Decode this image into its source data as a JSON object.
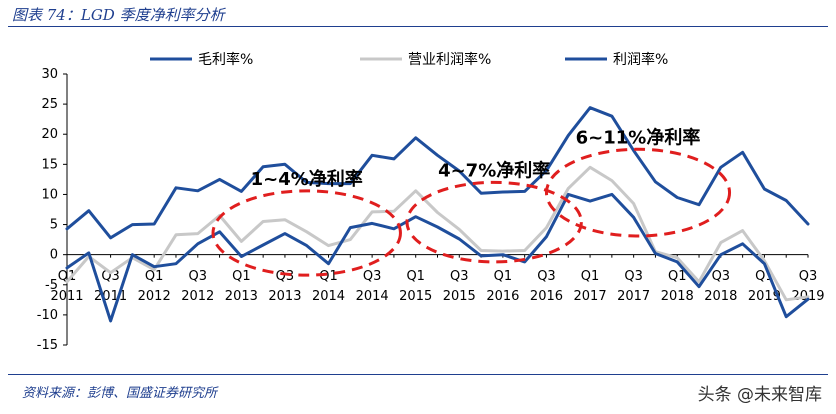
{
  "header": {
    "title": "图表 74：LGD 季度净利率分析"
  },
  "footer": {
    "source": "资料来源：彭博、国盛证券研究所",
    "watermark": "头条 @未来智库"
  },
  "chart_data": {
    "type": "line",
    "ylim": [
      -15,
      30
    ],
    "yticks": [
      -15,
      -10,
      -5,
      0,
      5,
      10,
      15,
      20,
      25,
      30
    ],
    "x_tick_labels": [
      {
        "q": "Q1",
        "y": "2011"
      },
      {
        "q": "Q3",
        "y": "2011"
      },
      {
        "q": "Q1",
        "y": "2012"
      },
      {
        "q": "Q3",
        "y": "2012"
      },
      {
        "q": "Q1",
        "y": "2013"
      },
      {
        "q": "Q3",
        "y": "2013"
      },
      {
        "q": "Q1",
        "y": "2014"
      },
      {
        "q": "Q3",
        "y": "2014"
      },
      {
        "q": "Q1",
        "y": "2015"
      },
      {
        "q": "Q3",
        "y": "2015"
      },
      {
        "q": "Q1",
        "y": "2016"
      },
      {
        "q": "Q3",
        "y": "2016"
      },
      {
        "q": "Q1",
        "y": "2017"
      },
      {
        "q": "Q3",
        "y": "2017"
      },
      {
        "q": "Q1",
        "y": "2018"
      },
      {
        "q": "Q3",
        "y": "2018"
      },
      {
        "q": "Q1",
        "y": "2019"
      },
      {
        "q": "Q3",
        "y": "2019"
      }
    ],
    "legend_position": "top",
    "grid": false,
    "series": [
      {
        "name": "毛利率%",
        "color": "#1f4e9c",
        "values": [
          4.3,
          7.3,
          2.8,
          5.0,
          5.1,
          11.1,
          10.6,
          12.5,
          10.5,
          14.6,
          15.0,
          12.0,
          11.8,
          11.8,
          16.5,
          15.9,
          19.4,
          16.5,
          13.9,
          10.2,
          10.4,
          10.5,
          14.0,
          19.8,
          24.4,
          23.0,
          17.3,
          12.1,
          9.5,
          8.3,
          14.5,
          17.0,
          10.9,
          9.0,
          5.1
        ]
      },
      {
        "name": "营业利润率%",
        "color": "#c8c8c8",
        "values": [
          -4.5,
          -0.3,
          -3.0,
          -0.5,
          -2.5,
          3.3,
          3.5,
          6.5,
          2.2,
          5.5,
          5.8,
          3.8,
          1.5,
          2.5,
          7.1,
          7.2,
          10.6,
          7.0,
          4.2,
          0.7,
          0.6,
          0.7,
          4.5,
          11.0,
          14.5,
          12.3,
          8.5,
          0.5,
          -0.5,
          -4.5,
          2.0,
          4.0,
          -1.0,
          -7.5,
          -7.0
        ]
      },
      {
        "name": "利润率%",
        "color": "#1f4e9c",
        "values": [
          -2.2,
          0.3,
          -11.0,
          0.0,
          -2.0,
          -1.5,
          1.8,
          3.8,
          -0.3,
          1.6,
          3.5,
          1.5,
          -1.5,
          4.5,
          5.2,
          4.3,
          6.3,
          4.6,
          2.6,
          -0.2,
          0.0,
          -1.2,
          3.0,
          10.0,
          8.9,
          10.0,
          6.2,
          0.2,
          -1.2,
          -5.3,
          0.0,
          1.8,
          -1.5,
          -10.3,
          -7.4
        ]
      }
    ],
    "annotations": [
      {
        "text": "1~4%净利率",
        "cx": 11.0,
        "cy": 3.6,
        "rx": 4.3,
        "ry": 7.0
      },
      {
        "text": "4~7%净利率",
        "cx": 19.6,
        "cy": 5.4,
        "rx": 4.0,
        "ry": 6.6
      },
      {
        "text": "6~11%净利率",
        "cx": 26.2,
        "cy": 10.3,
        "rx": 4.2,
        "ry": 7.2
      }
    ]
  }
}
